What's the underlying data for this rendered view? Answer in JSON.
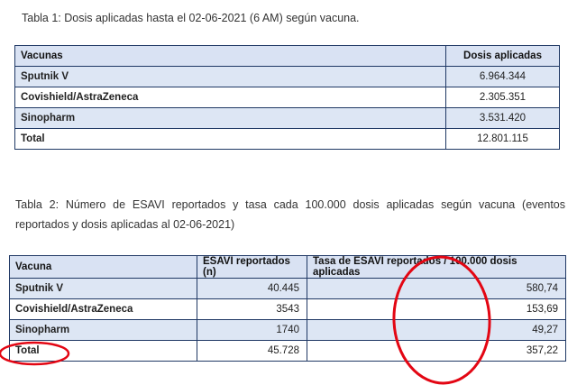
{
  "table1": {
    "caption": "Tabla 1: Dosis aplicadas hasta el 02-06-2021 (6 AM) según vacuna.",
    "headers": [
      "Vacunas",
      "Dosis aplicadas"
    ],
    "rows": [
      [
        "Sputnik V",
        "6.964.344"
      ],
      [
        "Covishield/AstraZeneca",
        "2.305.351"
      ],
      [
        "Sinopharm",
        "3.531.420"
      ],
      [
        "Total",
        "12.801.115"
      ]
    ]
  },
  "table2": {
    "caption": "Tabla 2: Número de ESAVI reportados y tasa cada 100.000 dosis aplicadas según vacuna (eventos reportados y dosis aplicadas al 02-06-2021)",
    "headers": [
      "Vacuna",
      "ESAVI reportados (n)",
      "Tasa de ESAVI reportados / 100.000 dosis aplicadas"
    ],
    "rows": [
      [
        "Sputnik V",
        "40.445",
        "580,74"
      ],
      [
        "Covishield/AstraZeneca",
        "3543",
        "153,69"
      ],
      [
        "Sinopharm",
        "1740",
        "49,27"
      ],
      [
        "Total",
        "45.728",
        "357,22"
      ]
    ]
  },
  "annotations": {
    "ink_color": "#e30613"
  }
}
